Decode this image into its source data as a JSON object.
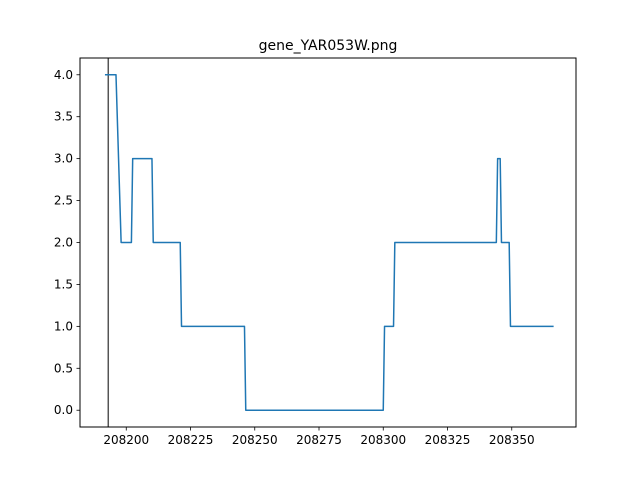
{
  "chart_data": {
    "type": "line",
    "title": "gene_YAR053W.png",
    "xlabel": "",
    "ylabel": "",
    "xlim": [
      208182,
      208375
    ],
    "ylim": [
      -0.2,
      4.2
    ],
    "x_ticks": [
      208200,
      208225,
      208250,
      208275,
      208300,
      208325,
      208350
    ],
    "y_ticks": [
      0.0,
      0.5,
      1.0,
      1.5,
      2.0,
      2.5,
      3.0,
      3.5,
      4.0
    ],
    "x_tick_labels": [
      "208200",
      "208225",
      "208250",
      "208275",
      "208300",
      "208325",
      "208350"
    ],
    "y_tick_labels": [
      "0.0",
      "0.5",
      "1.0",
      "1.5",
      "2.0",
      "2.5",
      "3.0",
      "3.5",
      "4.0"
    ],
    "grid": false,
    "vline_x": 208193,
    "series": [
      {
        "color": "#1f77b4",
        "x": [
          208192,
          208196,
          208198,
          208198.5,
          208202,
          208202.5,
          208210,
          208210.5,
          208221,
          208221.5,
          208246,
          208246.5,
          208300,
          208300.5,
          208304,
          208304.5,
          208344,
          208344.5,
          208345.5,
          208346,
          208349,
          208349.5,
          208366
        ],
        "y": [
          4,
          4,
          2,
          2,
          2,
          3,
          3,
          2,
          2,
          1,
          1,
          0,
          0,
          1,
          1,
          2,
          2,
          3,
          3,
          2,
          2,
          1,
          1
        ]
      }
    ],
    "colors": {
      "vline": "#555555",
      "axes": "#000000"
    }
  }
}
